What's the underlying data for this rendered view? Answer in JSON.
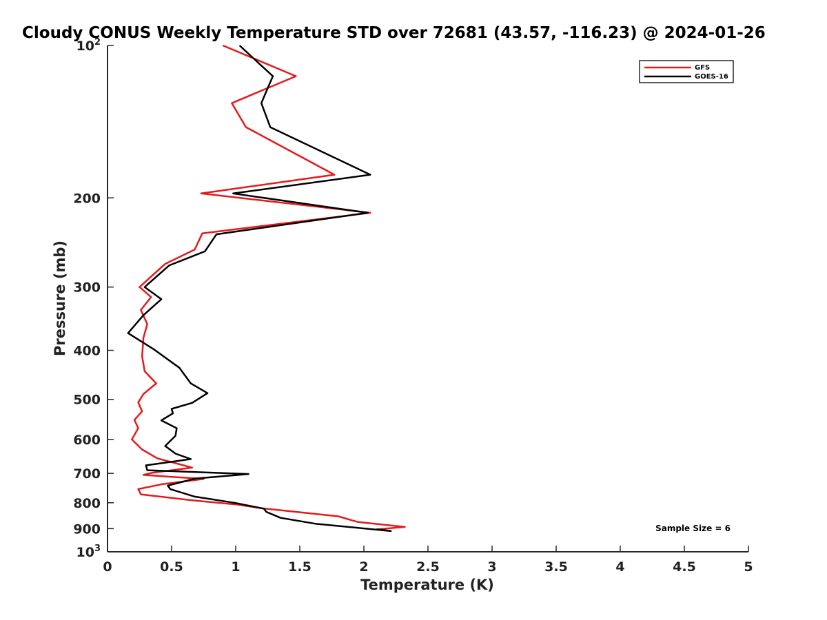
{
  "chart_data": {
    "type": "line",
    "title": "Cloudy CONUS Weekly Temperature STD over 72681 (43.57, -116.23) @ 2024-01-26",
    "xlabel": "Temperature (K)",
    "ylabel": "Pressure (mb)",
    "xlim": [
      0,
      5
    ],
    "ylim": [
      100,
      1000
    ],
    "y_scale": "log",
    "y_reversed": true,
    "x_ticks": [
      "0",
      "0.5",
      "1",
      "1.5",
      "2",
      "2.5",
      "3",
      "3.5",
      "4",
      "4.5",
      "5"
    ],
    "y_ticks": [
      {
        "value": 100,
        "base": "10",
        "exp": "2",
        "label": ""
      },
      {
        "value": 200,
        "label": "200"
      },
      {
        "value": 300,
        "label": "300"
      },
      {
        "value": 400,
        "label": "400"
      },
      {
        "value": 500,
        "label": "500"
      },
      {
        "value": 600,
        "label": "600"
      },
      {
        "value": 700,
        "label": "700"
      },
      {
        "value": 800,
        "label": "800"
      },
      {
        "value": 900,
        "label": "900"
      },
      {
        "value": 1000,
        "base": "10",
        "exp": "3",
        "label": ""
      }
    ],
    "grid": false,
    "legend": "top-right",
    "annotation": "Sample Size = 6",
    "series": [
      {
        "name": "GFS",
        "color": "#e41a1c",
        "x": [
          0.9,
          1.47,
          0.97,
          1.08,
          1.77,
          0.73,
          2.05,
          0.74,
          0.68,
          0.45,
          0.25,
          0.34,
          0.26,
          0.31,
          0.28,
          0.27,
          0.29,
          0.38,
          0.28,
          0.24,
          0.27,
          0.21,
          0.24,
          0.19,
          0.27,
          0.39,
          0.66,
          0.35,
          0.28,
          0.75,
          0.43,
          0.24,
          0.26,
          0.66,
          1.0,
          1.2,
          1.8,
          1.95,
          2.32,
          2.12
        ],
        "y": [
          100,
          115,
          130,
          145,
          180,
          196,
          214,
          235,
          253,
          270,
          300,
          314,
          333,
          355,
          378,
          411,
          440,
          465,
          488,
          507,
          528,
          549,
          570,
          600,
          628,
          654,
          682,
          698,
          705,
          718,
          735,
          752,
          770,
          791,
          806,
          820,
          851,
          873,
          893,
          902
        ]
      },
      {
        "name": "GOES-16",
        "color": "#000000",
        "x": [
          1.03,
          1.29,
          1.2,
          1.27,
          2.05,
          0.98,
          2.03,
          0.85,
          0.76,
          0.48,
          0.29,
          0.42,
          0.28,
          0.16,
          0.36,
          0.56,
          0.65,
          0.78,
          0.66,
          0.5,
          0.51,
          0.42,
          0.54,
          0.53,
          0.45,
          0.53,
          0.65,
          0.3,
          0.31,
          1.1,
          0.68,
          0.47,
          0.49,
          0.68,
          1.0,
          1.22,
          1.24,
          1.35,
          1.62,
          2.21,
          2.1
        ],
        "y": [
          100,
          115,
          130,
          145,
          180,
          196,
          214,
          236,
          255,
          272,
          300,
          317,
          341,
          370,
          398,
          433,
          465,
          486,
          508,
          522,
          533,
          550,
          570,
          590,
          618,
          640,
          656,
          675,
          690,
          702,
          717,
          740,
          752,
          778,
          801,
          822,
          834,
          857,
          880,
          910,
          902
        ]
      }
    ]
  }
}
